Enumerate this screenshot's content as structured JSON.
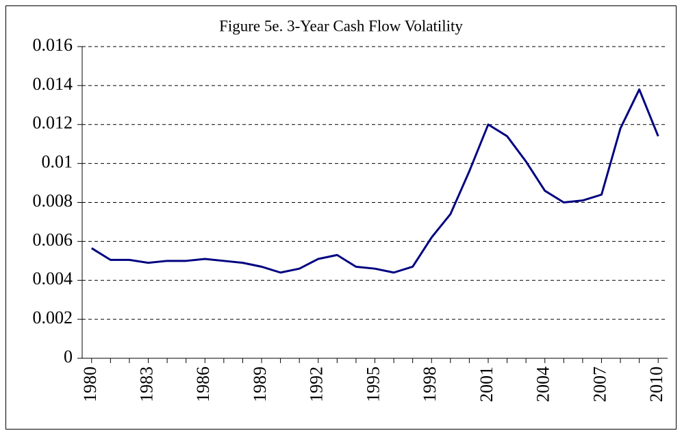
{
  "chart_data": {
    "type": "line",
    "title": "Figure 5e. 3-Year Cash Flow Volatility",
    "x": [
      1980,
      1981,
      1982,
      1983,
      1984,
      1985,
      1986,
      1987,
      1988,
      1989,
      1990,
      1991,
      1992,
      1993,
      1994,
      1995,
      1996,
      1997,
      1998,
      1999,
      2000,
      2001,
      2002,
      2003,
      2004,
      2005,
      2006,
      2007,
      2008,
      2009,
      2010
    ],
    "series": [
      {
        "name": "3-Year Cash Flow Volatility",
        "color": "#000080",
        "values": [
          0.00565,
          0.00505,
          0.00505,
          0.0049,
          0.005,
          0.005,
          0.0051,
          0.005,
          0.0049,
          0.0047,
          0.0044,
          0.0046,
          0.0051,
          0.0053,
          0.0047,
          0.0046,
          0.0044,
          0.0047,
          0.0062,
          0.0074,
          0.0096,
          0.012,
          0.0114,
          0.0101,
          0.0086,
          0.008,
          0.0081,
          0.0084,
          0.0118,
          0.0138,
          0.0114
        ]
      }
    ],
    "xlim": [
      1979.5,
      2010.5
    ],
    "xticks": [
      1980,
      1983,
      1986,
      1989,
      1992,
      1995,
      1998,
      2001,
      2004,
      2007,
      2010
    ],
    "ylim": [
      0,
      0.016
    ],
    "yticks": [
      0,
      0.002,
      0.004,
      0.006,
      0.008,
      0.01,
      0.012,
      0.014,
      0.016
    ],
    "grid": true
  }
}
